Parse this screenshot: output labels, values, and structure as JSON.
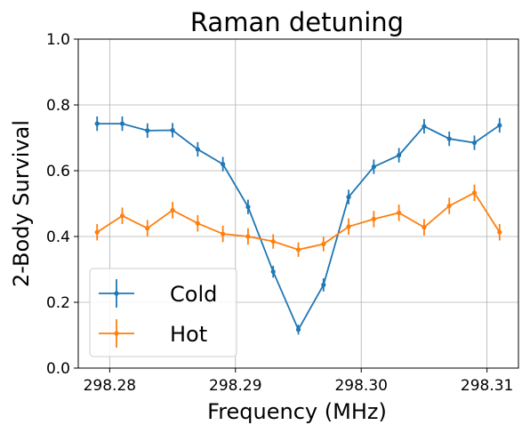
{
  "chart_data": {
    "type": "line",
    "title": "Raman detuning",
    "xlabel": "Frequency (MHz)",
    "ylabel": "2-Body Survival",
    "xlim": [
      298.2775,
      298.3125
    ],
    "ylim": [
      0.0,
      1.0
    ],
    "xticks": [
      298.28,
      298.29,
      298.3,
      298.31
    ],
    "xtick_labels": [
      "298.28",
      "298.29",
      "298.30",
      "298.31"
    ],
    "yticks": [
      0.0,
      0.2,
      0.4,
      0.6,
      0.8,
      1.0
    ],
    "ytick_labels": [
      "0.0",
      "0.2",
      "0.4",
      "0.6",
      "0.8",
      "1.0"
    ],
    "grid": true,
    "legend_position": "lower-left",
    "x": [
      298.279,
      298.281,
      298.283,
      298.285,
      298.287,
      298.289,
      298.291,
      298.293,
      298.295,
      298.297,
      298.299,
      298.301,
      298.303,
      298.305,
      298.307,
      298.309,
      298.311
    ],
    "series": [
      {
        "name": "Cold",
        "color": "#1f77b4",
        "values": [
          0.743,
          0.743,
          0.722,
          0.723,
          0.665,
          0.62,
          0.49,
          0.293,
          0.117,
          0.253,
          0.52,
          0.612,
          0.647,
          0.735,
          0.697,
          0.685,
          0.738
        ],
        "errors": [
          0.022,
          0.022,
          0.022,
          0.022,
          0.022,
          0.022,
          0.022,
          0.018,
          0.015,
          0.02,
          0.022,
          0.022,
          0.022,
          0.022,
          0.022,
          0.022,
          0.022
        ]
      },
      {
        "name": "Hot",
        "color": "#ff7f0e",
        "values": [
          0.413,
          0.463,
          0.425,
          0.48,
          0.44,
          0.408,
          0.4,
          0.385,
          0.36,
          0.377,
          0.43,
          0.453,
          0.472,
          0.428,
          0.493,
          0.533,
          0.413
        ],
        "errors": [
          0.025,
          0.025,
          0.025,
          0.025,
          0.025,
          0.025,
          0.025,
          0.022,
          0.022,
          0.022,
          0.025,
          0.025,
          0.025,
          0.025,
          0.025,
          0.025,
          0.025
        ]
      }
    ]
  }
}
